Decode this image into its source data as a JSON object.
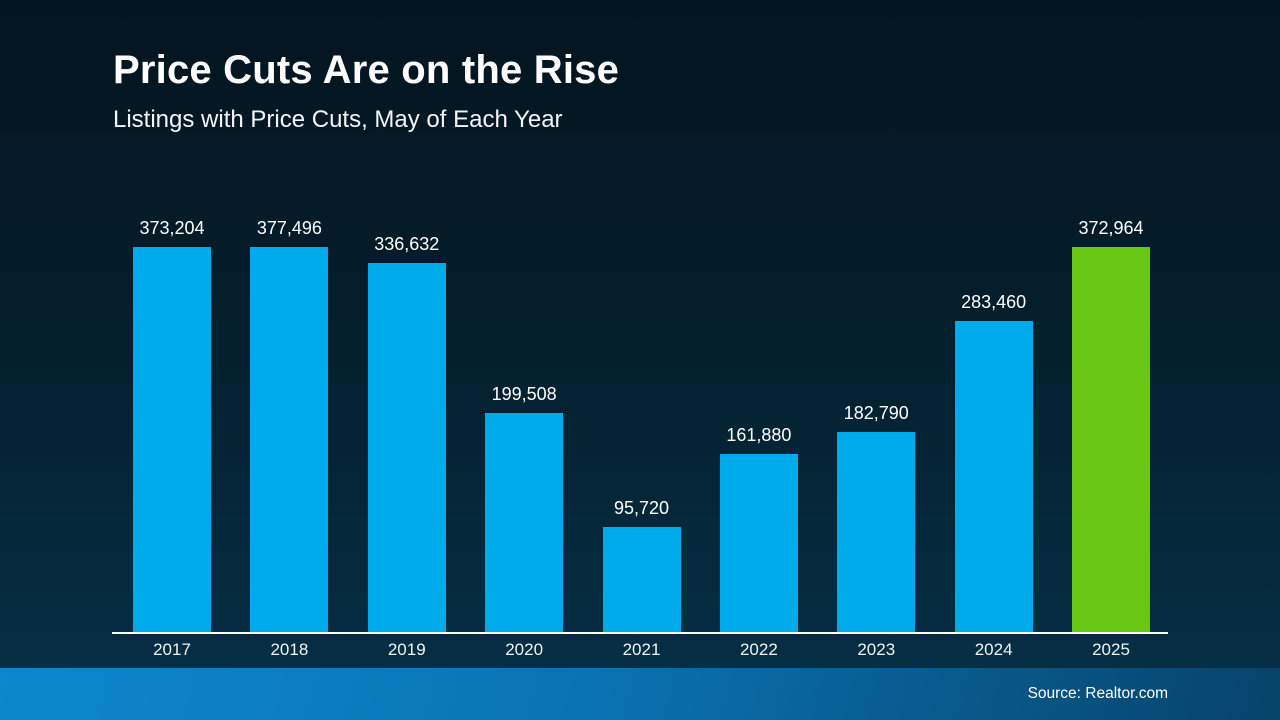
{
  "header": {
    "title": "Price Cuts Are on the Rise",
    "subtitle": "Listings with Price Cuts, May of Each Year"
  },
  "footer": {
    "source": "Source: Realtor.com"
  },
  "colors": {
    "bar_default": "#00ABEB",
    "bar_highlight": "#68C715",
    "background_top": "#031520",
    "background_bottom": "#063049",
    "footer_left": "#0d87ce",
    "footer_right": "#07436a",
    "axis": "#ffffff",
    "text": "#ffffff"
  },
  "chart_data": {
    "type": "bar",
    "title": "Price Cuts Are on the Rise",
    "subtitle": "Listings with Price Cuts, May of Each Year",
    "categories": [
      "2017",
      "2018",
      "2019",
      "2020",
      "2021",
      "2022",
      "2023",
      "2024",
      "2025"
    ],
    "values": [
      373204,
      377496,
      336632,
      199508,
      95720,
      161880,
      182790,
      283460,
      372964
    ],
    "value_labels": [
      "373,204",
      "377,496",
      "336,632",
      "199,508",
      "95,720",
      "161,880",
      "182,790",
      "283,460",
      "372,964"
    ],
    "highlight_index": 8,
    "bar_color_default": "#00ABEB",
    "bar_color_highlight": "#68C715",
    "ylim": [
      0,
      377496
    ],
    "grid": false,
    "legend": "none",
    "source": "Source: Realtor.com"
  }
}
